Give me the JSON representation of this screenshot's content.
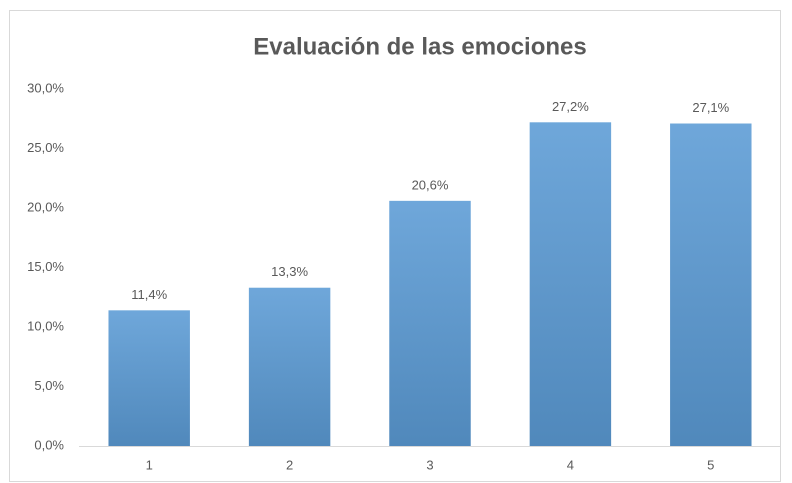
{
  "chart_data": {
    "type": "bar",
    "title": "Evaluación de las emociones",
    "categories": [
      "1",
      "2",
      "3",
      "4",
      "5"
    ],
    "values": [
      11.4,
      13.3,
      20.6,
      27.2,
      27.1
    ],
    "value_labels": [
      "11,4%",
      "13,3%",
      "20,6%",
      "27,2%",
      "27,1%"
    ],
    "color": "#5b9bd5",
    "ylim": [
      0,
      30
    ],
    "yticks": [
      {
        "value": 0,
        "label": "0,0%"
      },
      {
        "value": 5,
        "label": "5,0%"
      },
      {
        "value": 10,
        "label": "10,0%"
      },
      {
        "value": 15,
        "label": "15,0%"
      },
      {
        "value": 20,
        "label": "20,0%"
      },
      {
        "value": 25,
        "label": "25,0%"
      },
      {
        "value": 30,
        "label": "30,0%"
      }
    ],
    "grid": false
  }
}
